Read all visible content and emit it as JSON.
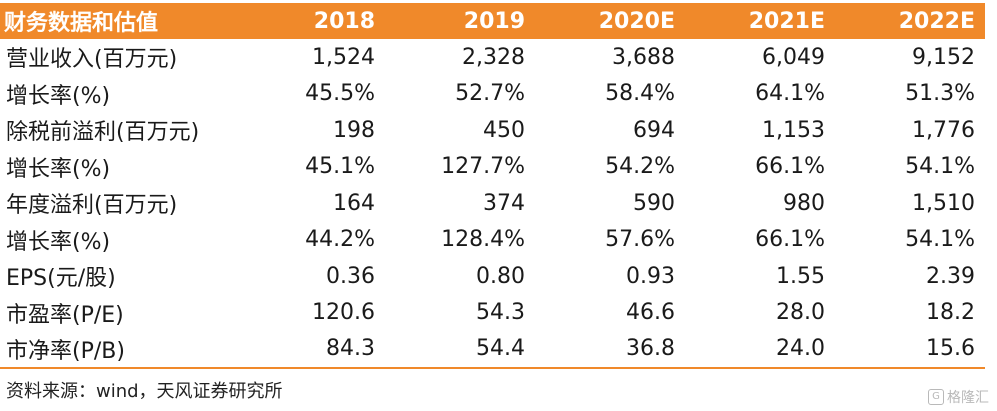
{
  "table": {
    "header": [
      "财务数据和估值",
      "2018",
      "2019",
      "2020E",
      "2021E",
      "2022E"
    ],
    "rows": [
      [
        "营业收入(百万元)",
        "1,524",
        "2,328",
        "3,688",
        "6,049",
        "9,152"
      ],
      [
        "增长率(%)",
        "45.5%",
        "52.7%",
        "58.4%",
        "64.1%",
        "51.3%"
      ],
      [
        "除税前溢利(百万元)",
        "198",
        "450",
        "694",
        "1,153",
        "1,776"
      ],
      [
        "增长率(%)",
        "45.1%",
        "127.7%",
        "54.2%",
        "66.1%",
        "54.1%"
      ],
      [
        "年度溢利(百万元)",
        "164",
        "374",
        "590",
        "980",
        "1,510"
      ],
      [
        "增长率(%)",
        "44.2%",
        "128.4%",
        "57.6%",
        "66.1%",
        "54.1%"
      ],
      [
        "EPS(元/股)",
        "0.36",
        "0.80",
        "0.93",
        "1.55",
        "2.39"
      ],
      [
        "市盈率(P/E)",
        "120.6",
        "54.3",
        "46.6",
        "28.0",
        "18.2"
      ],
      [
        "市净率(P/B)",
        "84.3",
        "54.4",
        "36.8",
        "24.0",
        "15.6"
      ]
    ]
  },
  "source": "资料来源：wind，天风证券研究所",
  "watermark": {
    "logo": "G",
    "text": "格隆汇"
  },
  "colors": {
    "header_bg": "#f0892a",
    "header_text": "#ffffff"
  }
}
